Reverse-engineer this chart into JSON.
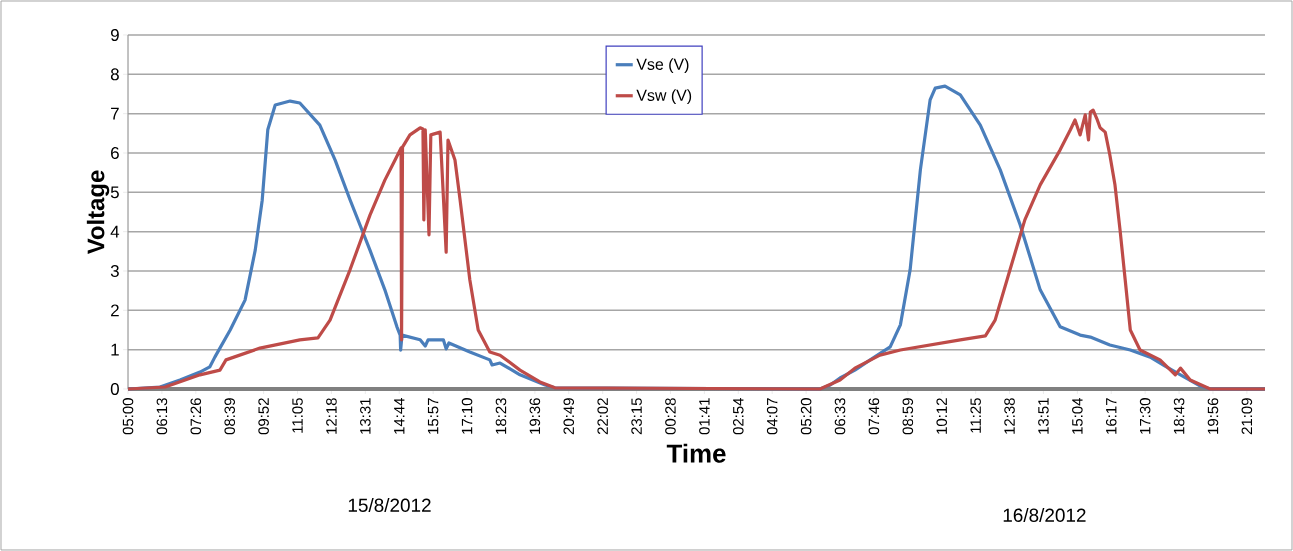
{
  "chart_data": {
    "type": "line",
    "xlabel": "Time",
    "ylabel": "Voltage",
    "annotations": [
      "15/8/2012",
      "16/8/2012"
    ],
    "xlim": [
      "2012-08-15T05:00",
      "2012-08-16T21:48"
    ],
    "ylim": [
      0,
      9
    ],
    "yticks": [
      0,
      1,
      2,
      3,
      4,
      5,
      6,
      7,
      8,
      9
    ],
    "xticks": [
      {
        "value": "2012-08-15T05:00",
        "label": "05:00"
      },
      {
        "value": "2012-08-15T06:13",
        "label": "06:13"
      },
      {
        "value": "2012-08-15T07:26",
        "label": "07:26"
      },
      {
        "value": "2012-08-15T08:39",
        "label": "08:39"
      },
      {
        "value": "2012-08-15T09:52",
        "label": "09:52"
      },
      {
        "value": "2012-08-15T11:05",
        "label": "11:05"
      },
      {
        "value": "2012-08-15T12:18",
        "label": "12:18"
      },
      {
        "value": "2012-08-15T13:31",
        "label": "13:31"
      },
      {
        "value": "2012-08-15T14:44",
        "label": "14:44"
      },
      {
        "value": "2012-08-15T15:57",
        "label": "15:57"
      },
      {
        "value": "2012-08-15T17:10",
        "label": "17:10"
      },
      {
        "value": "2012-08-15T18:23",
        "label": "18:23"
      },
      {
        "value": "2012-08-15T19:36",
        "label": "19:36"
      },
      {
        "value": "2012-08-15T20:49",
        "label": "20:49"
      },
      {
        "value": "2012-08-15T22:02",
        "label": "22:02"
      },
      {
        "value": "2012-08-15T23:15",
        "label": "23:15"
      },
      {
        "value": "2012-08-16T00:28",
        "label": "00:28"
      },
      {
        "value": "2012-08-16T01:41",
        "label": "01:41"
      },
      {
        "value": "2012-08-16T02:54",
        "label": "02:54"
      },
      {
        "value": "2012-08-16T04:07",
        "label": "04:07"
      },
      {
        "value": "2012-08-16T05:20",
        "label": "05:20"
      },
      {
        "value": "2012-08-16T06:33",
        "label": "06:33"
      },
      {
        "value": "2012-08-16T07:46",
        "label": "07:46"
      },
      {
        "value": "2012-08-16T08:59",
        "label": "08:59"
      },
      {
        "value": "2012-08-16T10:12",
        "label": "10:12"
      },
      {
        "value": "2012-08-16T11:25",
        "label": "11:25"
      },
      {
        "value": "2012-08-16T12:38",
        "label": "12:38"
      },
      {
        "value": "2012-08-16T13:51",
        "label": "13:51"
      },
      {
        "value": "2012-08-16T15:04",
        "label": "15:04"
      },
      {
        "value": "2012-08-16T16:17",
        "label": "16:17"
      },
      {
        "value": "2012-08-16T17:30",
        "label": "17:30"
      },
      {
        "value": "2012-08-16T18:43",
        "label": "18:43"
      },
      {
        "value": "2012-08-16T19:56",
        "label": "19:56"
      },
      {
        "value": "2012-08-16T21:09",
        "label": "21:09"
      }
    ],
    "grid": "y",
    "legend": "top",
    "marker": "none",
    "line_style": "solid",
    "series": [
      {
        "name": "Vse (V)",
        "color": "#4a7ebb",
        "x": [
          "2012-08-15T05:00",
          "2012-08-15T06:09",
          "2012-08-15T06:52",
          "2012-08-15T07:35",
          "2012-08-15T07:56",
          "2012-08-15T08:07",
          "2012-08-15T08:40",
          "2012-08-15T09:12",
          "2012-08-15T09:34",
          "2012-08-15T09:49",
          "2012-08-15T10:01",
          "2012-08-15T10:17",
          "2012-08-15T10:49",
          "2012-08-15T11:10",
          "2012-08-15T11:53",
          "2012-08-15T12:26",
          "2012-08-15T12:58",
          "2012-08-15T13:41",
          "2012-08-15T14:13",
          "2012-08-15T14:39",
          "2012-08-15T14:46",
          "2012-08-15T14:47",
          "2012-08-15T14:50",
          "2012-08-15T15:29",
          "2012-08-15T15:40",
          "2012-08-15T15:46",
          "2012-08-15T16:19",
          "2012-08-15T16:25",
          "2012-08-15T16:31",
          "2012-08-15T17:16",
          "2012-08-15T17:59",
          "2012-08-15T18:04",
          "2012-08-15T18:21",
          "2012-08-15T19:04",
          "2012-08-15T19:58",
          "2012-08-15T20:19",
          "2012-08-16T05:50",
          "2012-08-16T06:12",
          "2012-08-16T06:33",
          "2012-08-16T07:05",
          "2012-08-16T07:38",
          "2012-08-16T08:21",
          "2012-08-16T08:43",
          "2012-08-16T09:04",
          "2012-08-16T09:26",
          "2012-08-16T09:47",
          "2012-08-16T09:58",
          "2012-08-16T10:19",
          "2012-08-16T10:52",
          "2012-08-16T11:35",
          "2012-08-16T12:18",
          "2012-08-16T13:01",
          "2012-08-16T13:44",
          "2012-08-16T14:27",
          "2012-08-16T15:10",
          "2012-08-16T15:32",
          "2012-08-16T16:14",
          "2012-08-16T16:58",
          "2012-08-16T17:41",
          "2012-08-16T18:13",
          "2012-08-16T18:46",
          "2012-08-16T19:28",
          "2012-08-16T19:50",
          "2012-08-16T21:48"
        ],
        "values": [
          0,
          0.05,
          0.23,
          0.43,
          0.56,
          0.81,
          1.5,
          2.26,
          3.53,
          4.8,
          6.59,
          7.22,
          7.32,
          7.27,
          6.71,
          5.82,
          4.81,
          3.53,
          2.52,
          1.58,
          1.37,
          0.99,
          1.37,
          1.25,
          1.09,
          1.25,
          1.25,
          1.02,
          1.17,
          0.94,
          0.74,
          0.61,
          0.66,
          0.36,
          0.1,
          0.03,
          0,
          0.1,
          0.28,
          0.48,
          0.74,
          1.07,
          1.63,
          3.03,
          5.57,
          7.35,
          7.65,
          7.7,
          7.48,
          6.71,
          5.57,
          4.17,
          2.52,
          1.58,
          1.37,
          1.32,
          1.12,
          0.99,
          0.81,
          0.58,
          0.36,
          0.08,
          0,
          0
        ]
      },
      {
        "name": "Vsw (V)",
        "color": "#be4b48",
        "x": [
          "2012-08-15T05:00",
          "2012-08-15T06:20",
          "2012-08-15T07:35",
          "2012-08-15T08:18",
          "2012-08-15T08:31",
          "2012-08-15T09:44",
          "2012-08-15T11:10",
          "2012-08-15T11:49",
          "2012-08-15T12:15",
          "2012-08-15T12:58",
          "2012-08-15T13:41",
          "2012-08-15T14:13",
          "2012-08-15T14:35",
          "2012-08-15T14:48",
          "2012-08-15T14:49",
          "2012-08-15T14:51",
          "2012-08-15T15:07",
          "2012-08-15T15:29",
          "2012-08-15T15:35",
          "2012-08-15T15:37",
          "2012-08-15T15:40",
          "2012-08-15T15:48",
          "2012-08-15T15:52",
          "2012-08-15T16:12",
          "2012-08-15T16:25",
          "2012-08-15T16:29",
          "2012-08-15T16:44",
          "2012-08-15T16:55",
          "2012-08-15T17:16",
          "2012-08-15T17:34",
          "2012-08-15T17:59",
          "2012-08-15T18:21",
          "2012-08-15T19:04",
          "2012-08-15T19:47",
          "2012-08-15T20:19",
          "2012-08-16T05:50",
          "2012-08-16T06:33",
          "2012-08-16T07:05",
          "2012-08-16T07:59",
          "2012-08-16T08:43",
          "2012-08-16T10:52",
          "2012-08-16T11:46",
          "2012-08-16T12:07",
          "2012-08-16T12:39",
          "2012-08-16T13:11",
          "2012-08-16T13:44",
          "2012-08-16T14:27",
          "2012-08-16T14:49",
          "2012-08-16T14:59",
          "2012-08-16T15:10",
          "2012-08-16T15:21",
          "2012-08-16T15:28",
          "2012-08-16T15:32",
          "2012-08-16T15:38",
          "2012-08-16T15:47",
          "2012-08-16T15:53",
          "2012-08-16T16:04",
          "2012-08-16T16:14",
          "2012-08-16T16:25",
          "2012-08-16T16:36",
          "2012-08-16T16:47",
          "2012-08-16T16:58",
          "2012-08-16T17:19",
          "2012-08-16T18:02",
          "2012-08-16T18:35",
          "2012-08-16T18:46",
          "2012-08-16T19:07",
          "2012-08-16T19:50",
          "2012-08-16T21:48"
        ],
        "values": [
          0,
          0.05,
          0.36,
          0.48,
          0.74,
          1.04,
          1.25,
          1.3,
          1.75,
          3.03,
          4.42,
          5.31,
          5.82,
          6.13,
          1.25,
          6.15,
          6.46,
          6.64,
          6.61,
          4.3,
          6.59,
          3.92,
          6.46,
          6.53,
          3.48,
          6.33,
          5.82,
          4.81,
          2.77,
          1.5,
          0.94,
          0.86,
          0.48,
          0.18,
          0.03,
          0,
          0.23,
          0.53,
          0.86,
          0.99,
          1.25,
          1.35,
          1.75,
          3.03,
          4.3,
          5.19,
          6.08,
          6.59,
          6.84,
          6.46,
          6.97,
          6.33,
          7.04,
          7.09,
          6.84,
          6.64,
          6.53,
          5.95,
          5.19,
          4.04,
          2.77,
          1.5,
          0.99,
          0.74,
          0.36,
          0.53,
          0.23,
          0,
          0
        ]
      }
    ]
  }
}
